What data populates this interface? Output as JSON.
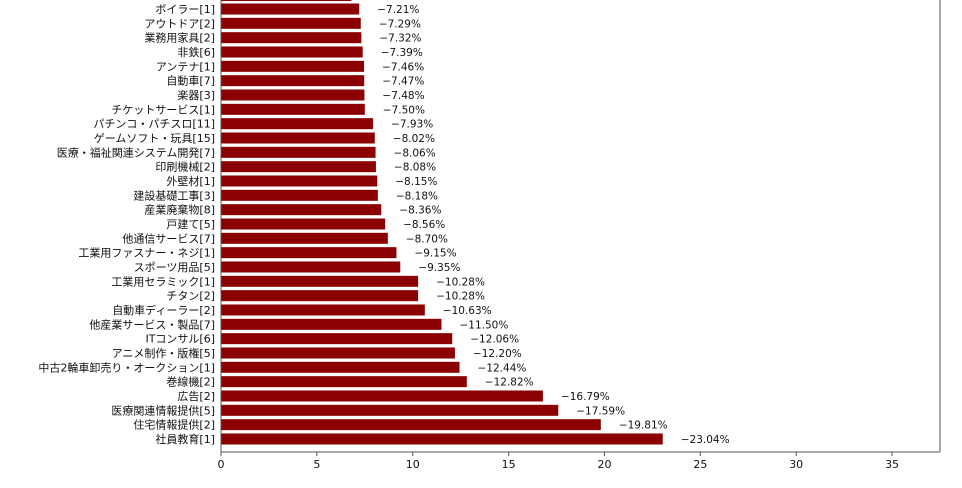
{
  "chart_data": {
    "type": "bar",
    "orientation": "horizontal",
    "categories": [
      "ボイラー[1]",
      "アウトドア[2]",
      "業務用家具[2]",
      "非鉄[6]",
      "アンテナ[1]",
      "自動車[7]",
      "楽器[3]",
      "チケットサービス[1]",
      "パチンコ・パチスロ[11]",
      "ゲームソフト・玩具[15]",
      "医療・福祉関連システム開発[7]",
      "印刷機械[2]",
      "外壁材[1]",
      "建設基礎工事[3]",
      "産業廃棄物[8]",
      "戸建て[5]",
      "他通信サービス[7]",
      "工業用ファスナー・ネジ[1]",
      "スポーツ用品[5]",
      "工業用セラミック[1]",
      "チタン[2]",
      "自動車ディーラー[2]",
      "他産業サービス・製品[7]",
      "ITコンサル[6]",
      "アニメ制作・版権[5]",
      "中古2輪車卸売り・オークション[1]",
      "巻線機[2]",
      "広告[2]",
      "医療関連情報提供[5]",
      "住宅情報提供[2]",
      "社員教育[1]"
    ],
    "values": [
      7.21,
      7.29,
      7.32,
      7.39,
      7.46,
      7.47,
      7.48,
      7.5,
      7.93,
      8.02,
      8.06,
      8.08,
      8.15,
      8.18,
      8.36,
      8.56,
      8.7,
      9.15,
      9.35,
      10.28,
      10.28,
      10.63,
      11.5,
      12.06,
      12.2,
      12.44,
      12.82,
      16.79,
      17.59,
      19.81,
      23.04
    ],
    "value_labels": [
      "−7.21%",
      "−7.29%",
      "−7.32%",
      "−7.39%",
      "−7.46%",
      "−7.47%",
      "−7.48%",
      "−7.50%",
      "−7.93%",
      "−8.02%",
      "−8.06%",
      "−8.08%",
      "−8.15%",
      "−8.18%",
      "−8.36%",
      "−8.56%",
      "−8.70%",
      "−9.15%",
      "−9.35%",
      "−10.28%",
      "−10.28%",
      "−10.63%",
      "−11.50%",
      "−12.06%",
      "−12.20%",
      "−12.44%",
      "−12.82%",
      "−16.79%",
      "−17.59%",
      "−19.81%",
      "−23.04%"
    ],
    "partial_top_bar_value": 6.8,
    "xlim": [
      0,
      37.5
    ],
    "xticks": [
      0,
      5,
      10,
      15,
      20,
      25,
      30,
      35
    ],
    "xlabel": "",
    "ylabel": "",
    "title": "",
    "grid": false,
    "colors": {
      "bar": "#8b0000",
      "axis": "#555555",
      "text": "#111111"
    }
  }
}
